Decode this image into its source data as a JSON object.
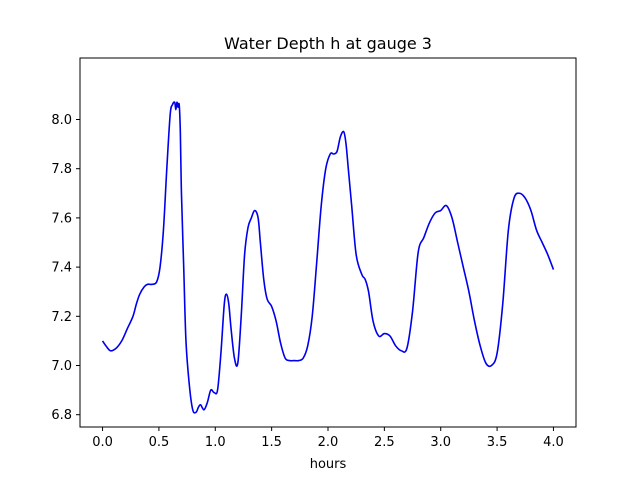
{
  "chart_data": {
    "type": "line",
    "title": "Water Depth h at gauge 3",
    "xlabel": "hours",
    "ylabel": "",
    "xlim": [
      -0.2,
      4.2
    ],
    "ylim": [
      6.75,
      8.25
    ],
    "xticks": [
      0.0,
      0.5,
      1.0,
      1.5,
      2.0,
      2.5,
      3.0,
      3.5,
      4.0
    ],
    "xtick_labels": [
      "0.0",
      "0.5",
      "1.0",
      "1.5",
      "2.0",
      "2.5",
      "3.0",
      "3.5",
      "4.0"
    ],
    "yticks": [
      6.8,
      7.0,
      7.2,
      7.4,
      7.6,
      7.8,
      8.0
    ],
    "ytick_labels": [
      "6.8",
      "7.0",
      "7.2",
      "7.4",
      "7.6",
      "7.8",
      "8.0"
    ],
    "grid": false,
    "series": [
      {
        "color": "#0000ee",
        "x": [
          0.0,
          0.03,
          0.07,
          0.12,
          0.17,
          0.22,
          0.27,
          0.3,
          0.33,
          0.37,
          0.4,
          0.44,
          0.48,
          0.51,
          0.54,
          0.57,
          0.6,
          0.62,
          0.64,
          0.65,
          0.66,
          0.67,
          0.68,
          0.69,
          0.7,
          0.72,
          0.74,
          0.77,
          0.8,
          0.83,
          0.85,
          0.87,
          0.9,
          0.93,
          0.96,
          0.99,
          1.02,
          1.05,
          1.08,
          1.1,
          1.12,
          1.14,
          1.17,
          1.2,
          1.23,
          1.26,
          1.29,
          1.32,
          1.35,
          1.38,
          1.4,
          1.43,
          1.46,
          1.5,
          1.54,
          1.58,
          1.62,
          1.66,
          1.7,
          1.74,
          1.78,
          1.82,
          1.86,
          1.9,
          1.94,
          1.98,
          2.02,
          2.05,
          2.08,
          2.11,
          2.14,
          2.16,
          2.18,
          2.21,
          2.25,
          2.3,
          2.33,
          2.36,
          2.4,
          2.45,
          2.5,
          2.55,
          2.6,
          2.65,
          2.7,
          2.75,
          2.8,
          2.85,
          2.9,
          2.95,
          3.0,
          3.05,
          3.1,
          3.15,
          3.2,
          3.25,
          3.3,
          3.35,
          3.4,
          3.45,
          3.5,
          3.55,
          3.6,
          3.65,
          3.7,
          3.75,
          3.8,
          3.85,
          3.9,
          3.95,
          4.0
        ],
        "y": [
          7.1,
          7.08,
          7.06,
          7.07,
          7.1,
          7.15,
          7.2,
          7.25,
          7.29,
          7.32,
          7.33,
          7.33,
          7.34,
          7.4,
          7.55,
          7.8,
          8.02,
          8.06,
          8.07,
          8.04,
          8.07,
          8.05,
          8.06,
          7.95,
          7.7,
          7.4,
          7.1,
          6.92,
          6.82,
          6.81,
          6.83,
          6.84,
          6.82,
          6.85,
          6.9,
          6.89,
          6.9,
          7.05,
          7.25,
          7.29,
          7.25,
          7.15,
          7.03,
          7.01,
          7.2,
          7.45,
          7.56,
          7.6,
          7.63,
          7.6,
          7.5,
          7.35,
          7.27,
          7.24,
          7.18,
          7.09,
          7.03,
          7.02,
          7.02,
          7.02,
          7.03,
          7.08,
          7.2,
          7.42,
          7.65,
          7.8,
          7.86,
          7.86,
          7.87,
          7.93,
          7.95,
          7.9,
          7.8,
          7.65,
          7.45,
          7.37,
          7.35,
          7.3,
          7.18,
          7.12,
          7.13,
          7.12,
          7.08,
          7.06,
          7.07,
          7.22,
          7.46,
          7.52,
          7.58,
          7.62,
          7.63,
          7.65,
          7.6,
          7.5,
          7.4,
          7.3,
          7.18,
          7.08,
          7.01,
          7.0,
          7.05,
          7.25,
          7.55,
          7.68,
          7.7,
          7.68,
          7.63,
          7.55,
          7.5,
          7.45,
          7.39
        ]
      }
    ]
  }
}
